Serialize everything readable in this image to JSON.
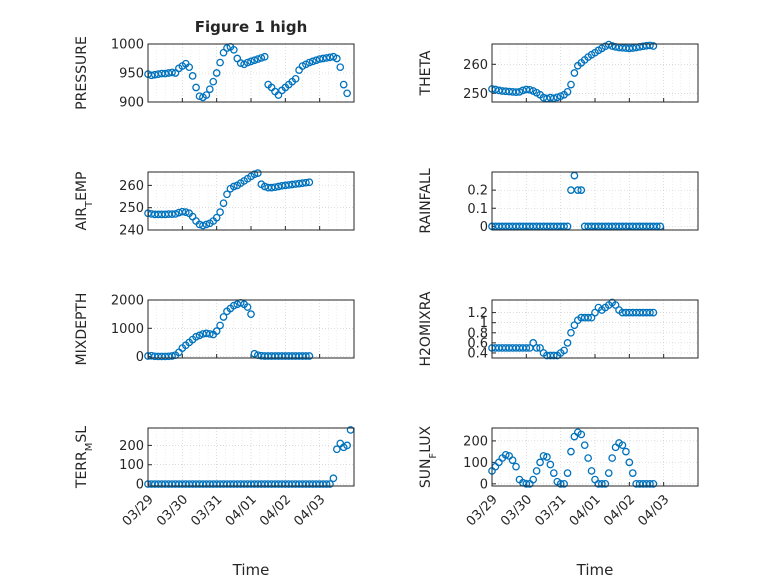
{
  "chart_data": [
    {
      "type": "scatter",
      "title": "Figure 1 high",
      "ylabel": "PRESSURE",
      "ylim": [
        900,
        1000
      ],
      "yticks": [
        "900",
        "950",
        "1000"
      ],
      "color": "#0072BD",
      "series": [
        {
          "x": [
            0.0,
            0.1,
            0.2,
            0.3,
            0.4,
            0.5,
            0.6,
            0.7,
            0.8,
            0.9,
            1.0,
            1.1,
            1.2,
            1.3,
            1.4,
            1.5,
            1.6,
            1.7,
            1.8,
            1.9,
            2.0,
            2.1,
            2.2,
            2.3,
            2.4,
            2.5,
            2.6,
            2.7,
            2.8,
            2.9,
            3.0,
            3.1,
            3.2,
            3.3,
            3.4,
            3.5,
            3.6,
            3.7,
            3.8,
            3.9,
            4.0,
            4.1,
            4.2,
            4.3,
            4.4,
            4.5,
            4.6,
            4.7,
            4.8,
            4.9,
            5.0,
            5.1,
            5.2,
            5.3,
            5.4,
            5.5,
            5.6,
            5.7,
            5.8
          ],
          "y": [
            948,
            946,
            947,
            948,
            949,
            949,
            950,
            951,
            950,
            958,
            962,
            966,
            960,
            945,
            925,
            910,
            908,
            912,
            922,
            935,
            950,
            968,
            985,
            993,
            995,
            990,
            975,
            967,
            965,
            968,
            970,
            972,
            974,
            976,
            978,
            930,
            925,
            918,
            912,
            920,
            925,
            930,
            935,
            940,
            955,
            962,
            965,
            968,
            970,
            972,
            974,
            975,
            976,
            977,
            978,
            975,
            960,
            930,
            915
          ]
        }
      ]
    },
    {
      "type": "scatter",
      "title": "",
      "ylabel": "THETA",
      "ylim": [
        247,
        267
      ],
      "yticks": [
        "250",
        "260"
      ],
      "color": "#0072BD",
      "series": [
        {
          "x": [
            0.0,
            0.1,
            0.2,
            0.3,
            0.4,
            0.5,
            0.6,
            0.7,
            0.8,
            0.9,
            1.0,
            1.1,
            1.2,
            1.3,
            1.4,
            1.5,
            1.6,
            1.7,
            1.8,
            1.9,
            2.0,
            2.1,
            2.2,
            2.3,
            2.4,
            2.5,
            2.6,
            2.7,
            2.8,
            2.9,
            3.0,
            3.1,
            3.2,
            3.3,
            3.4,
            3.5,
            3.6,
            3.7,
            3.8,
            3.9,
            4.0,
            4.1,
            4.2,
            4.3,
            4.4,
            4.5,
            4.6,
            4.7
          ],
          "y": [
            251.5,
            251.3,
            251.0,
            250.8,
            250.7,
            250.6,
            250.5,
            250.4,
            250.5,
            251.0,
            251.3,
            251.2,
            250.8,
            250.2,
            249.5,
            248.5,
            248.2,
            248.5,
            248.3,
            248.6,
            249.0,
            249.5,
            250.5,
            253.0,
            257.0,
            259.5,
            260.5,
            261.5,
            262.5,
            263.3,
            264.0,
            264.8,
            265.5,
            266.2,
            266.8,
            266.3,
            266.0,
            265.8,
            265.7,
            265.6,
            265.5,
            265.6,
            265.8,
            266.0,
            266.2,
            266.4,
            266.5,
            266.3
          ]
        }
      ]
    },
    {
      "type": "scatter",
      "title": "",
      "ylabel": "AIR_TEMP",
      "ylim": [
        240,
        266
      ],
      "yticks": [
        "240",
        "250",
        "260"
      ],
      "color": "#0072BD",
      "series": [
        {
          "x": [
            0.0,
            0.1,
            0.2,
            0.3,
            0.4,
            0.5,
            0.6,
            0.7,
            0.8,
            0.9,
            1.0,
            1.1,
            1.2,
            1.3,
            1.4,
            1.5,
            1.6,
            1.7,
            1.8,
            1.9,
            2.0,
            2.1,
            2.2,
            2.3,
            2.4,
            2.5,
            2.6,
            2.7,
            2.8,
            2.9,
            3.0,
            3.1,
            3.2,
            3.3,
            3.4,
            3.5,
            3.6,
            3.7,
            3.8,
            3.9,
            4.0,
            4.1,
            4.2,
            4.3,
            4.4,
            4.5,
            4.6,
            4.7
          ],
          "y": [
            247.5,
            247.2,
            247.0,
            247.0,
            247.0,
            247.0,
            247.1,
            247.1,
            247.2,
            247.8,
            248.2,
            248.0,
            247.5,
            246.0,
            244.0,
            242.5,
            242.0,
            242.5,
            243.0,
            244.0,
            245.5,
            248.0,
            252.0,
            256.0,
            258.5,
            259.5,
            260.0,
            261.0,
            262.0,
            263.0,
            264.0,
            265.0,
            265.5,
            260.5,
            259.5,
            259.0,
            259.0,
            259.2,
            259.5,
            259.8,
            260.0,
            260.2,
            260.4,
            260.6,
            260.8,
            261.0,
            261.2,
            261.4
          ]
        }
      ]
    },
    {
      "type": "scatter",
      "title": "",
      "ylabel": "RAINFALL",
      "ylim": [
        -0.02,
        0.3
      ],
      "yticks": [
        "0",
        "0.1",
        "0.2"
      ],
      "color": "#0072BD",
      "series": [
        {
          "x": [
            0.0,
            0.1,
            0.2,
            0.3,
            0.4,
            0.5,
            0.6,
            0.7,
            0.8,
            0.9,
            1.0,
            1.1,
            1.2,
            1.3,
            1.4,
            1.5,
            1.6,
            1.7,
            1.8,
            1.9,
            2.0,
            2.1,
            2.2,
            2.3,
            2.4,
            2.5,
            2.6,
            2.7,
            2.8,
            2.9,
            3.0,
            3.1,
            3.2,
            3.3,
            3.4,
            3.5,
            3.6,
            3.7,
            3.8,
            3.9,
            4.0,
            4.1,
            4.2,
            4.3,
            4.4,
            4.5,
            4.6,
            4.7,
            4.8,
            4.9
          ],
          "y": [
            0,
            0,
            0,
            0,
            0,
            0,
            0,
            0,
            0,
            0,
            0,
            0,
            0,
            0,
            0,
            0,
            0,
            0,
            0,
            0,
            0,
            0,
            0,
            0.2,
            0.28,
            0.2,
            0.2,
            0,
            0,
            0,
            0,
            0,
            0,
            0,
            0,
            0,
            0,
            0,
            0,
            0,
            0,
            0,
            0,
            0,
            0,
            0,
            0,
            0,
            0,
            0
          ]
        }
      ]
    },
    {
      "type": "scatter",
      "title": "",
      "ylabel": "MIXDEPTH",
      "ylim": [
        -50,
        2000
      ],
      "yticks": [
        "0",
        "1000",
        "2000"
      ],
      "color": "#0072BD",
      "series": [
        {
          "x": [
            0.0,
            0.1,
            0.2,
            0.3,
            0.4,
            0.5,
            0.6,
            0.7,
            0.8,
            0.9,
            1.0,
            1.1,
            1.2,
            1.3,
            1.4,
            1.5,
            1.6,
            1.7,
            1.8,
            1.9,
            2.0,
            2.1,
            2.2,
            2.3,
            2.4,
            2.5,
            2.6,
            2.7,
            2.8,
            2.9,
            3.0,
            3.1,
            3.2,
            3.3,
            3.4,
            3.5,
            3.6,
            3.7,
            3.8,
            3.9,
            4.0,
            4.1,
            4.2,
            4.3,
            4.4,
            4.5,
            4.6,
            4.7
          ],
          "y": [
            20,
            30,
            10,
            5,
            5,
            5,
            10,
            20,
            50,
            150,
            300,
            400,
            500,
            600,
            700,
            750,
            800,
            820,
            800,
            780,
            900,
            1100,
            1400,
            1600,
            1700,
            1800,
            1850,
            1900,
            1850,
            1750,
            1500,
            100,
            50,
            30,
            20,
            20,
            20,
            20,
            20,
            20,
            20,
            20,
            20,
            20,
            20,
            20,
            20,
            20
          ]
        }
      ]
    },
    {
      "type": "scatter",
      "title": "",
      "ylabel": "H2OMIXRA",
      "ylim": [
        0.3,
        1.45
      ],
      "yticks": [
        "0.4",
        "0.6",
        "0.8",
        "1",
        "1.2"
      ],
      "color": "#0072BD",
      "series": [
        {
          "x": [
            0.0,
            0.1,
            0.2,
            0.3,
            0.4,
            0.5,
            0.6,
            0.7,
            0.8,
            0.9,
            1.0,
            1.1,
            1.2,
            1.3,
            1.4,
            1.5,
            1.6,
            1.7,
            1.8,
            1.9,
            2.0,
            2.1,
            2.2,
            2.3,
            2.4,
            2.5,
            2.6,
            2.7,
            2.8,
            2.9,
            3.0,
            3.1,
            3.2,
            3.3,
            3.4,
            3.5,
            3.6,
            3.7,
            3.8,
            3.9,
            4.0,
            4.1,
            4.2,
            4.3,
            4.4,
            4.5,
            4.6,
            4.7
          ],
          "y": [
            0.5,
            0.5,
            0.5,
            0.5,
            0.5,
            0.5,
            0.5,
            0.5,
            0.5,
            0.5,
            0.5,
            0.5,
            0.6,
            0.5,
            0.5,
            0.4,
            0.35,
            0.35,
            0.35,
            0.35,
            0.4,
            0.45,
            0.6,
            0.8,
            0.95,
            1.05,
            1.1,
            1.1,
            1.1,
            1.1,
            1.2,
            1.3,
            1.25,
            1.3,
            1.35,
            1.4,
            1.35,
            1.25,
            1.2,
            1.2,
            1.2,
            1.2,
            1.2,
            1.2,
            1.2,
            1.2,
            1.2,
            1.2
          ]
        }
      ]
    },
    {
      "type": "scatter",
      "title": "",
      "ylabel": "TERR_MSL",
      "ylim": [
        -10,
        290
      ],
      "yticks": [
        "0",
        "100",
        "200"
      ],
      "color": "#0072BD",
      "series": [
        {
          "x": [
            0.0,
            0.1,
            0.2,
            0.3,
            0.4,
            0.5,
            0.6,
            0.7,
            0.8,
            0.9,
            1.0,
            1.1,
            1.2,
            1.3,
            1.4,
            1.5,
            1.6,
            1.7,
            1.8,
            1.9,
            2.0,
            2.1,
            2.2,
            2.3,
            2.4,
            2.5,
            2.6,
            2.7,
            2.8,
            2.9,
            3.0,
            3.1,
            3.2,
            3.3,
            3.4,
            3.5,
            3.6,
            3.7,
            3.8,
            3.9,
            4.0,
            4.1,
            4.2,
            4.3,
            4.4,
            4.5,
            4.6,
            4.7,
            4.8,
            4.9,
            5.0,
            5.1,
            5.2,
            5.3,
            5.4,
            5.5,
            5.6,
            5.7,
            5.8,
            5.9
          ],
          "y": [
            0,
            0,
            0,
            0,
            0,
            0,
            0,
            0,
            0,
            0,
            0,
            0,
            0,
            0,
            0,
            0,
            0,
            0,
            0,
            0,
            0,
            0,
            0,
            0,
            0,
            0,
            0,
            0,
            0,
            0,
            0,
            0,
            0,
            0,
            0,
            0,
            0,
            0,
            0,
            0,
            0,
            0,
            0,
            0,
            0,
            0,
            0,
            0,
            0,
            0,
            0,
            0,
            0,
            0,
            30,
            180,
            210,
            190,
            200,
            280
          ]
        }
      ]
    },
    {
      "type": "scatter",
      "title": "",
      "ylabel": "SUN_FLUX",
      "ylim": [
        -10,
        260
      ],
      "yticks": [
        "0",
        "100",
        "200"
      ],
      "color": "#0072BD",
      "series": [
        {
          "x": [
            0.0,
            0.1,
            0.2,
            0.3,
            0.4,
            0.5,
            0.6,
            0.7,
            0.8,
            0.9,
            1.0,
            1.1,
            1.2,
            1.3,
            1.4,
            1.5,
            1.6,
            1.7,
            1.8,
            1.9,
            2.0,
            2.1,
            2.2,
            2.3,
            2.4,
            2.5,
            2.6,
            2.7,
            2.8,
            2.9,
            3.0,
            3.1,
            3.2,
            3.3,
            3.4,
            3.5,
            3.6,
            3.7,
            3.8,
            3.9,
            4.0,
            4.1,
            4.2,
            4.3,
            4.4,
            4.5,
            4.6,
            4.7
          ],
          "y": [
            60,
            80,
            100,
            120,
            135,
            130,
            110,
            80,
            20,
            5,
            0,
            0,
            20,
            60,
            100,
            130,
            125,
            90,
            50,
            10,
            0,
            0,
            50,
            150,
            220,
            240,
            230,
            180,
            120,
            60,
            20,
            0,
            0,
            0,
            50,
            120,
            170,
            190,
            180,
            150,
            100,
            50,
            0,
            0,
            0,
            0,
            0,
            0
          ]
        }
      ]
    }
  ],
  "xaxis": {
    "label": "Time",
    "ticks": [
      "03/29",
      "03/30",
      "03/31",
      "04/01",
      "04/02",
      "04/03"
    ]
  }
}
